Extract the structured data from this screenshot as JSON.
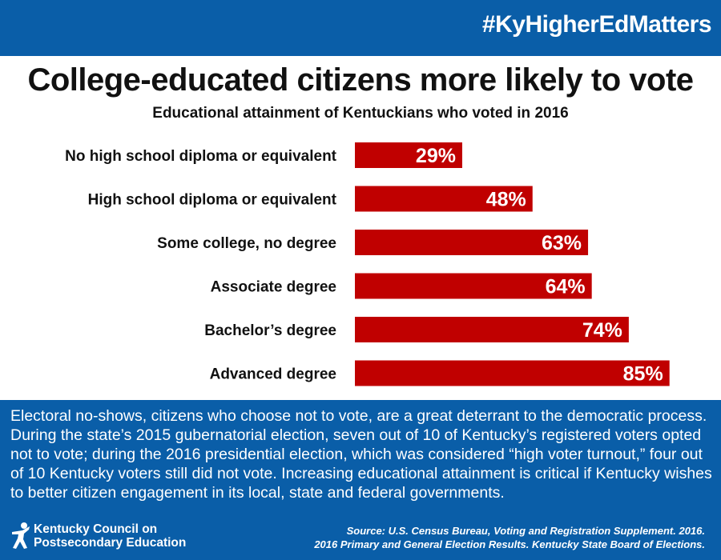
{
  "header": {
    "hashtag": "#KyHigherEdMatters"
  },
  "chart_data": {
    "type": "bar",
    "orientation": "horizontal",
    "title": "College-educated citizens more likely to vote",
    "subtitle": "Educational attainment of Kentuckians who voted in 2016",
    "categories": [
      "No high school diploma or equivalent",
      "High school diploma or equivalent",
      "Some college, no degree",
      "Associate degree",
      "Bachelor’s degree",
      "Advanced degree"
    ],
    "values": [
      29,
      48,
      63,
      64,
      74,
      85
    ],
    "data_labels": [
      "29%",
      "48%",
      "63%",
      "64%",
      "74%",
      "85%"
    ],
    "unit": "%",
    "xlim": [
      0,
      100
    ],
    "bar_color": "#c00000",
    "grid": false
  },
  "footer": {
    "paragraph": "Electoral no-shows, citizens who choose not to vote, are a great deterrant to the democratic process. During the state’s 2015 gubernatorial election, seven out of 10 of Kentucky’s registered voters opted not to vote; during the 2016 presidential election, which was considered “high voter turnout,” four out of 10 Kentucky voters still did not vote. Increasing educational attainment is critical if Kentucky wishes to better citizen engagement in its local, state and federal governments.",
    "logo_line1": "Kentucky Council on",
    "logo_line2": "Postsecondary Education",
    "source_line1": "Source: U.S. Census Bureau, Voting and Registration Supplement. 2016.",
    "source_line2": "2016 Primary and General Election Results. Kentucky State Board of Elections."
  },
  "colors": {
    "brand_blue": "#0a5ea8",
    "bar_red": "#c00000",
    "text": "#111111"
  }
}
